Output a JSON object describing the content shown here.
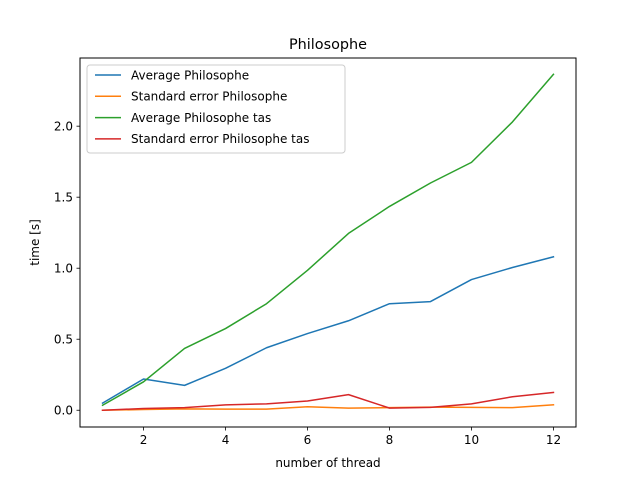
{
  "chart_data": {
    "type": "line",
    "title": "Philosophe",
    "xlabel": "number of thread",
    "ylabel": "time [s]",
    "xlim": [
      0.45,
      12.55
    ],
    "ylim": [
      -0.118,
      2.48
    ],
    "xticks": [
      2,
      4,
      6,
      8,
      10,
      12
    ],
    "yticks": [
      0.0,
      0.5,
      1.0,
      1.5,
      2.0
    ],
    "xtick_labels": [
      "2",
      "4",
      "6",
      "8",
      "10",
      "12"
    ],
    "ytick_labels": [
      "0.0",
      "0.5",
      "1.0",
      "1.5",
      "2.0"
    ],
    "grid": false,
    "legend_position": "top-left",
    "x": [
      1,
      2,
      3,
      4,
      5,
      6,
      7,
      8,
      9,
      10,
      11,
      12
    ],
    "series": [
      {
        "name": "Average Philosophe",
        "color": "#1f77b4",
        "values": [
          0.05,
          0.22,
          0.175,
          0.295,
          0.44,
          0.54,
          0.63,
          0.75,
          0.765,
          0.92,
          1.005,
          1.08
        ]
      },
      {
        "name": "Standard error Philosophe",
        "color": "#ff7f0e",
        "values": [
          0.0,
          0.005,
          0.01,
          0.008,
          0.008,
          0.025,
          0.015,
          0.018,
          0.022,
          0.02,
          0.018,
          0.038
        ]
      },
      {
        "name": "Average Philosophe tas",
        "color": "#2ca02c",
        "values": [
          0.035,
          0.2,
          0.435,
          0.575,
          0.75,
          0.985,
          1.245,
          1.435,
          1.6,
          1.745,
          2.03,
          2.365
        ]
      },
      {
        "name": "Standard error Philosophe tas",
        "color": "#d62728",
        "values": [
          0.0,
          0.012,
          0.018,
          0.038,
          0.045,
          0.065,
          0.11,
          0.015,
          0.02,
          0.045,
          0.095,
          0.125
        ]
      }
    ]
  }
}
